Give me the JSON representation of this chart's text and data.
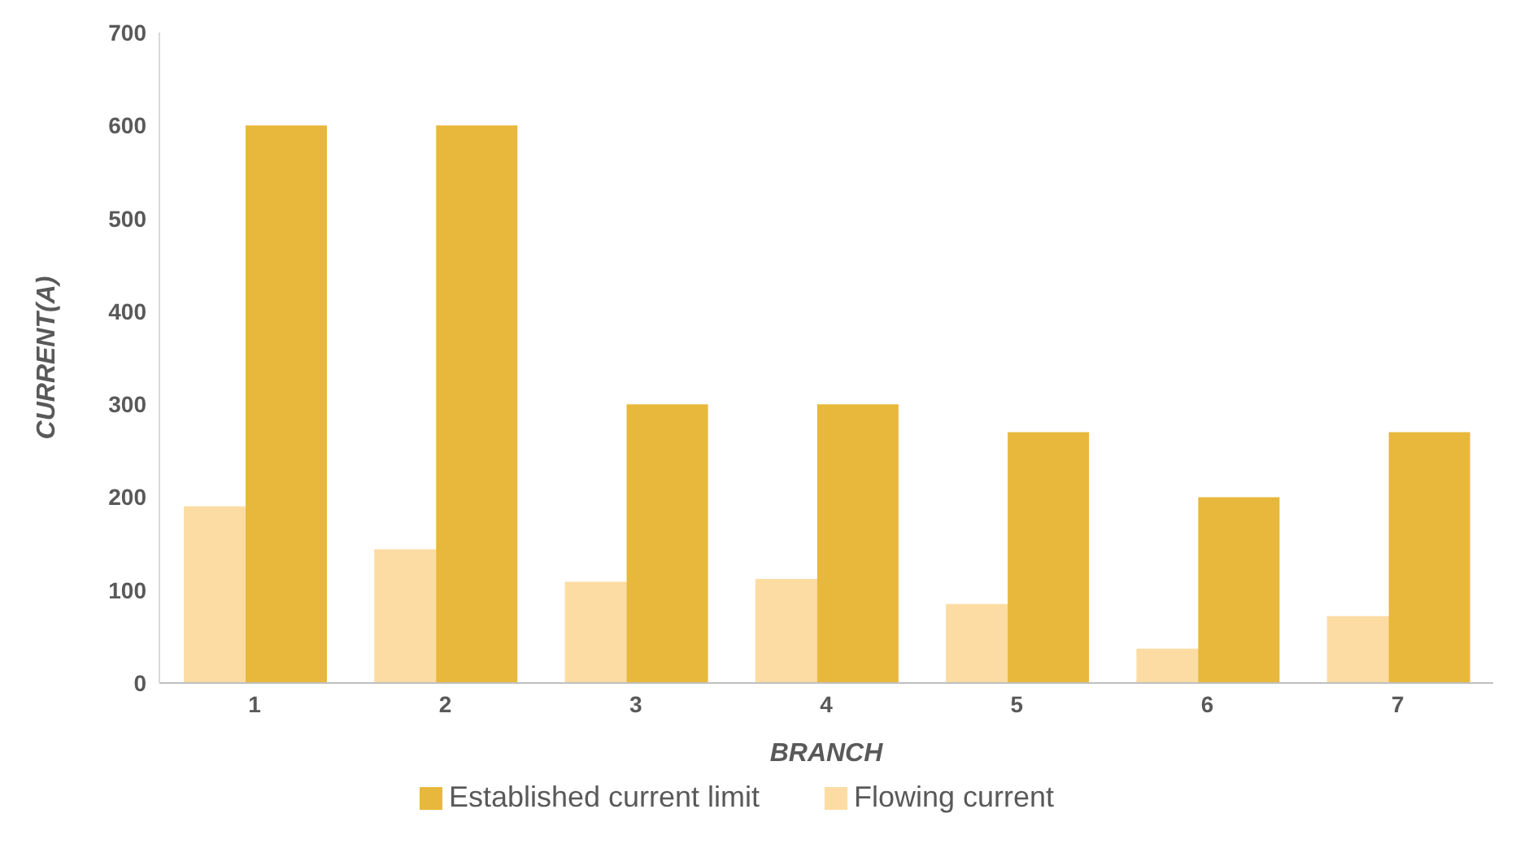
{
  "chart_data": {
    "type": "bar",
    "xlabel": "BRANCH",
    "ylabel": "CURRENT(A)",
    "categories": [
      "1",
      "2",
      "3",
      "4",
      "5",
      "6",
      "7"
    ],
    "series": [
      {
        "name": "Flowing current",
        "color": "#fddca3",
        "values": [
          190,
          144,
          109,
          112,
          85,
          37,
          72
        ]
      },
      {
        "name": "Established current limit",
        "color": "#e8b83c",
        "values": [
          600,
          600,
          300,
          300,
          270,
          200,
          270
        ]
      }
    ],
    "ylim": [
      0,
      700
    ],
    "yticks": [
      0,
      100,
      200,
      300,
      400,
      500,
      600,
      700
    ],
    "grid": false,
    "legend": "bottom"
  }
}
